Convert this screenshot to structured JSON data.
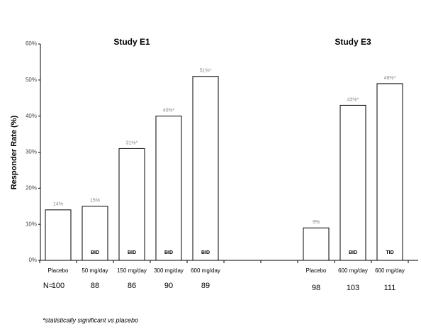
{
  "chart_data": {
    "type": "bar",
    "y_label": "Responder Rate (%)",
    "ylim": [
      0,
      60
    ],
    "yticks": [
      {
        "value": 0,
        "label": "0%"
      },
      {
        "value": 10,
        "label": "10%"
      },
      {
        "value": 20,
        "label": "20%"
      },
      {
        "value": 30,
        "label": "30%"
      },
      {
        "value": 40,
        "label": "40%"
      },
      {
        "value": 50,
        "label": "50%"
      },
      {
        "value": 60,
        "label": "60%"
      }
    ],
    "color": "#ffffff",
    "n_label": "N=",
    "footnote": "*statistically significant vs placebo",
    "groups": [
      {
        "title": "Study E1",
        "categories": [
          "Placebo",
          "50 mg/day",
          "150 mg/day",
          "300 mg/day",
          "600 mg/day"
        ],
        "values": [
          14,
          15,
          31,
          40,
          51
        ],
        "value_labels": [
          "14%",
          "15%",
          "31%*",
          "40%*",
          "51%*"
        ],
        "dosing": [
          null,
          "BID",
          "BID",
          "BID",
          "BID"
        ],
        "n": [
          100,
          88,
          86,
          90,
          89
        ]
      },
      {
        "title": "Study E3",
        "categories": [
          "Placebo",
          "600 mg/day",
          "600 mg/day"
        ],
        "values": [
          9,
          43,
          49
        ],
        "value_labels": [
          "9%",
          "43%*",
          "49%*"
        ],
        "dosing": [
          null,
          "BID",
          "TID"
        ],
        "n": [
          98,
          103,
          111
        ]
      }
    ]
  }
}
